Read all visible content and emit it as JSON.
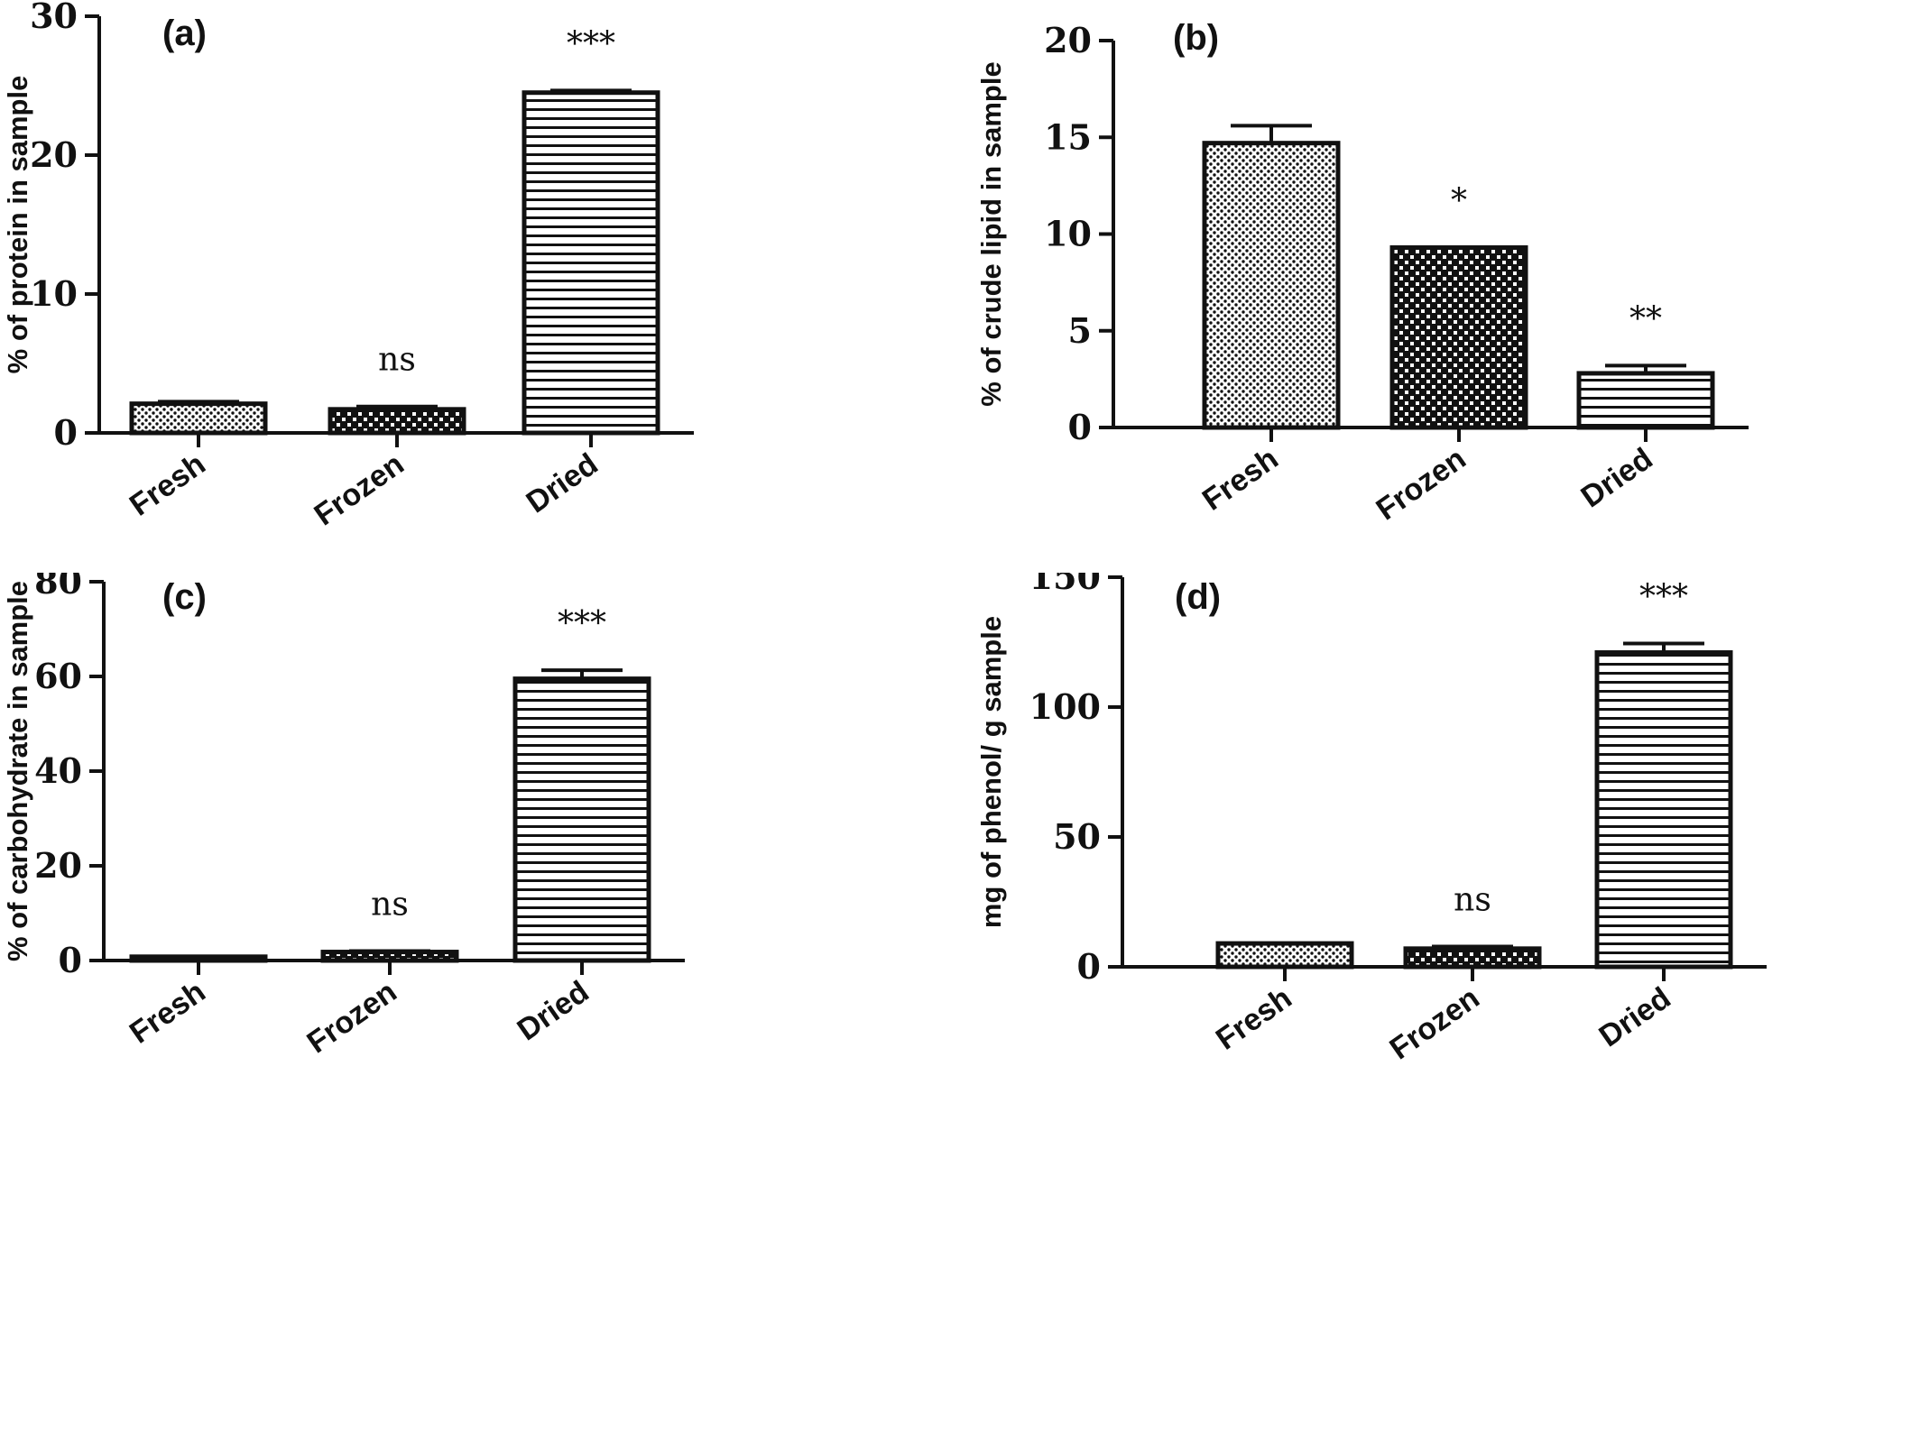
{
  "chart_data": [
    {
      "type": "bar",
      "panel_label": "(a)",
      "ylabel": "% of protein in sample",
      "categories": [
        "Fresh",
        "Frozen",
        "Dried"
      ],
      "values": [
        2.1,
        1.7,
        24.5
      ],
      "errors": [
        0.15,
        0.2,
        0.15
      ],
      "annotations": [
        "",
        "ns",
        "***"
      ],
      "ylim": [
        0,
        30
      ],
      "yticks": [
        0,
        10,
        20,
        30
      ],
      "patterns": [
        "dots",
        "checker",
        "hlines"
      ]
    },
    {
      "type": "bar",
      "panel_label": "(b)",
      "ylabel": "% of crude lipid in sample",
      "categories": [
        "Fresh",
        "Frozen",
        "Dried"
      ],
      "values": [
        14.7,
        9.3,
        2.8
      ],
      "errors": [
        0.9,
        0.0,
        0.4
      ],
      "annotations": [
        "",
        "*",
        "**"
      ],
      "ylim": [
        0,
        20
      ],
      "yticks": [
        0,
        5,
        10,
        15,
        20
      ],
      "patterns": [
        "dots",
        "checker",
        "hlines"
      ]
    },
    {
      "type": "bar",
      "panel_label": "(c)",
      "ylabel": "% of carbohydrate in sample",
      "categories": [
        "Fresh",
        "Frozen",
        "Dried"
      ],
      "values": [
        0.8,
        1.8,
        59.5
      ],
      "errors": [
        0.0,
        0.2,
        1.8
      ],
      "annotations": [
        "",
        "ns",
        "***"
      ],
      "ylim": [
        0,
        80
      ],
      "yticks": [
        0,
        20,
        40,
        60,
        80
      ],
      "patterns": [
        "dots",
        "checker",
        "hlines"
      ]
    },
    {
      "type": "bar",
      "panel_label": "(d)",
      "ylabel": "mg of phenol/ g sample",
      "categories": [
        "Fresh",
        "Frozen",
        "Dried"
      ],
      "values": [
        9.0,
        7.0,
        121.0
      ],
      "errors": [
        0.0,
        0.8,
        3.5
      ],
      "annotations": [
        "",
        "ns",
        "***"
      ],
      "ylim": [
        0,
        150
      ],
      "yticks": [
        0,
        50,
        100,
        150
      ],
      "patterns": [
        "dots",
        "checker",
        "hlines"
      ]
    }
  ]
}
